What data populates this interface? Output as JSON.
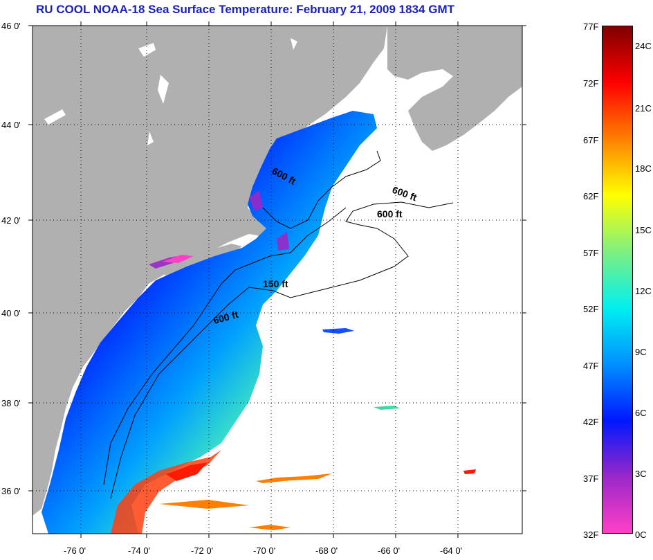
{
  "title": "RU COOL  NOAA-18  Sea Surface Temperature:  February 21, 2009 1834 GMT",
  "latitude_labels": [
    "46 0'",
    "44 0'",
    "42 0'",
    "40 0'",
    "38 0'",
    "36 0'"
  ],
  "longitude_labels": [
    "-76 0'",
    "-74 0'",
    "-72 0'",
    "-70 0'",
    "-68 0'",
    "-66 0'",
    "-64 0'"
  ],
  "contour_labels": [
    "600 ft",
    "600 ft",
    "600 ft",
    "150 ft",
    "600 ft"
  ],
  "colorbar": {
    "fahrenheit_labels": [
      "77F",
      "72F",
      "67F",
      "62F",
      "57F",
      "52F",
      "47F",
      "42F",
      "37F",
      "32F"
    ],
    "celsius_labels": [
      "24C",
      "21C",
      "18C",
      "15C",
      "12C",
      "9C",
      "6C",
      "3C",
      "0C"
    ],
    "colors": [
      "#ff40c8",
      "#9a28c8",
      "#0018ff",
      "#0090ff",
      "#00f0f0",
      "#80f080",
      "#ffff00",
      "#ff8000",
      "#ff0000",
      "#800000"
    ]
  },
  "colors": {
    "land": "#b0b0b0",
    "no_data": "#ffffff",
    "title": "#1a22b8"
  }
}
